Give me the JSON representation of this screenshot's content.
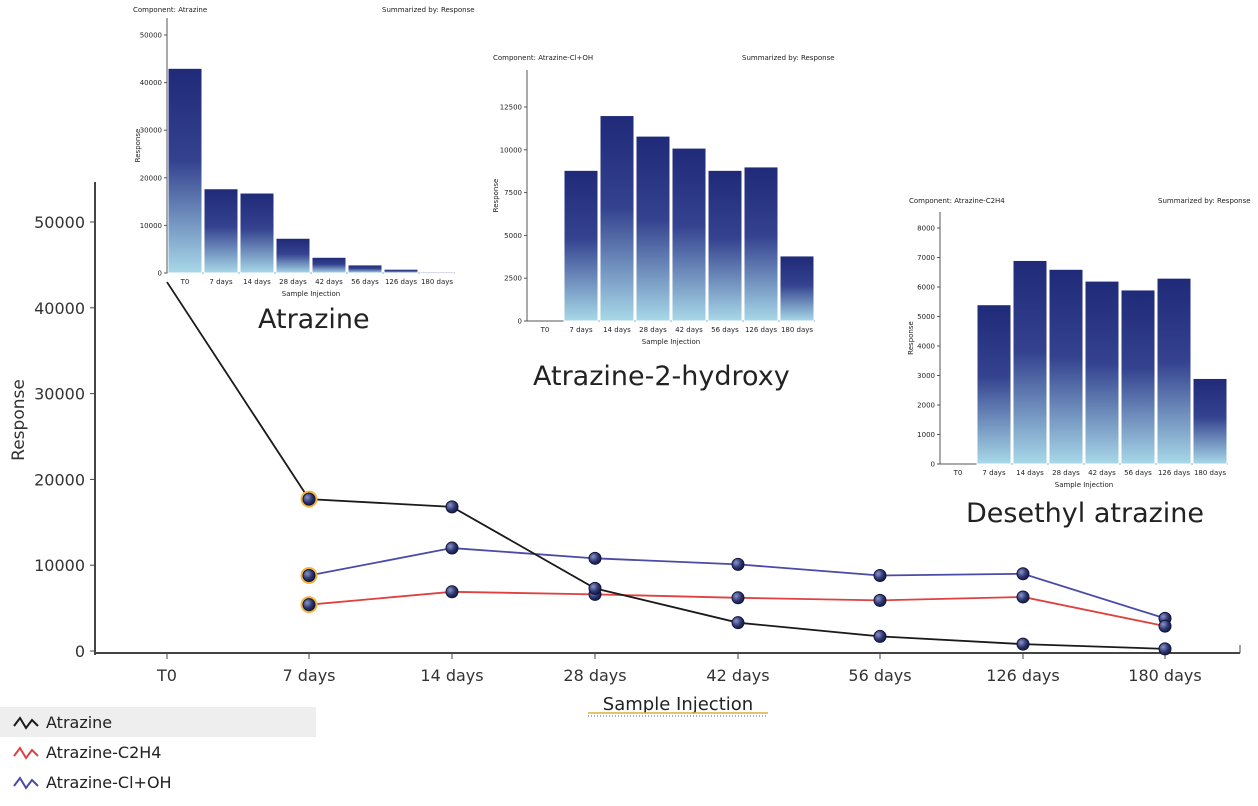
{
  "main": {
    "xlabel": "Sample Injection",
    "ylabel": "Response"
  },
  "legend": [
    {
      "label": "Atrazine",
      "color": "#1a1a1a",
      "selected": true
    },
    {
      "label": "Atrazine-C2H4",
      "color": "#e04040",
      "selected": false
    },
    {
      "label": "Atrazine-Cl+OH",
      "color": "#4a4aa8",
      "selected": false
    }
  ],
  "insets": [
    {
      "component": "Component: Atrazine",
      "summarized": "Summarized by: Response",
      "caption": "Atrazine"
    },
    {
      "component": "Component: Atrazine-Cl+OH",
      "summarized": "Summarized by: Response",
      "caption": "Atrazine-2-hydroxy"
    },
    {
      "component": "Component: Atrazine-C2H4",
      "summarized": "Summarized by: Response",
      "caption": "Desethyl atrazine"
    }
  ],
  "chart_data": [
    {
      "type": "line",
      "categories": [
        "T0",
        "7 days",
        "14 days",
        "28 days",
        "42 days",
        "56 days",
        "126 days",
        "180 days"
      ],
      "xlabel": "Sample Injection",
      "ylabel": "Response",
      "ylim": [
        0,
        55000
      ],
      "yticks": [
        0,
        10000,
        20000,
        30000,
        40000,
        50000
      ],
      "series": [
        {
          "name": "Atrazine",
          "color": "#1a1a1a",
          "values": [
            43000,
            17700,
            16800,
            7300,
            3300,
            1700,
            800,
            250
          ]
        },
        {
          "name": "Atrazine-C2H4",
          "color": "#e04040",
          "values": [
            null,
            5400,
            6900,
            6600,
            6200,
            5900,
            6300,
            2900
          ]
        },
        {
          "name": "Atrazine-Cl+OH",
          "color": "#4a4aa8",
          "values": [
            null,
            8800,
            12000,
            10800,
            10100,
            8800,
            9000,
            3800
          ]
        }
      ]
    },
    {
      "type": "bar",
      "title": "Component: Atrazine",
      "categories": [
        "T0",
        "7 days",
        "14 days",
        "28 days",
        "42 days",
        "56 days",
        "126 days",
        "180 days"
      ],
      "values": [
        43000,
        17700,
        16800,
        7300,
        3300,
        1700,
        800,
        250
      ],
      "xlabel": "Sample Injection",
      "ylabel": "Response",
      "ylim": [
        0,
        52000
      ],
      "yticks": [
        0,
        10000,
        20000,
        30000,
        40000,
        50000
      ]
    },
    {
      "type": "bar",
      "title": "Component: Atrazine-Cl+OH",
      "categories": [
        "T0",
        "7 days",
        "14 days",
        "28 days",
        "42 days",
        "56 days",
        "126 days",
        "180 days"
      ],
      "values": [
        0,
        8800,
        12000,
        10800,
        10100,
        8800,
        9000,
        3800
      ],
      "xlabel": "Sample Injection",
      "ylabel": "Response",
      "ylim": [
        0,
        12800
      ],
      "yticks": [
        0,
        2500,
        5000,
        7500,
        10000,
        12500
      ]
    },
    {
      "type": "bar",
      "title": "Component: Atrazine-C2H4",
      "categories": [
        "T0",
        "7 days",
        "14 days",
        "28 days",
        "42 days",
        "56 days",
        "126 days",
        "180 days"
      ],
      "values": [
        0,
        5400,
        6900,
        6600,
        6200,
        5900,
        6300,
        2900
      ],
      "xlabel": "Sample Injection",
      "ylabel": "Response",
      "ylim": [
        0,
        8200
      ],
      "yticks": [
        0,
        1000,
        2000,
        3000,
        4000,
        5000,
        6000,
        7000,
        8000
      ]
    }
  ]
}
